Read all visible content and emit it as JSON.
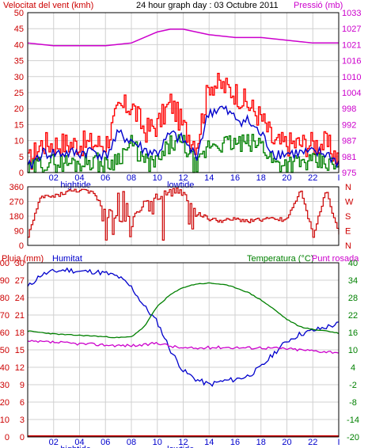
{
  "header": {
    "left_title": "Velocitat del vent (kmh)",
    "center_title": "24 hour graph day : 03 Octubre 2011",
    "right_title": "Pressió (mb)"
  },
  "colors": {
    "frame": "#000000",
    "grid": "#d0d0d0",
    "wind_speed": "#ff0000",
    "wind_avg": "#0000cc",
    "wind_gust_green": "#008000",
    "pressure": "#cc00cc",
    "humidity": "#0000cc",
    "temperature": "#008000",
    "dewpoint": "#cc00cc",
    "rain": "#cc0000",
    "direction": "#cc0000"
  },
  "x_ticks": [
    "02",
    "04",
    "06",
    "08",
    "10",
    "12",
    "14",
    "16",
    "18",
    "20",
    "22",
    "I"
  ],
  "tide_labels": {
    "high": "hightide",
    "low": "lowtide"
  },
  "chart_data": [
    {
      "type": "line",
      "name": "wind-and-pressure",
      "title": "24 hour graph day : 03 Octubre 2011",
      "ylabel_left": "Velocitat del vent (kmh)",
      "ylabel_right": "Pressió (mb)",
      "y_left_ticks": [
        "50",
        "45",
        "40",
        "35",
        "30",
        "25",
        "20",
        "15",
        "10",
        "5",
        "0"
      ],
      "y_right_ticks": [
        "1033",
        "1027",
        "1021",
        "1016",
        "1010",
        "1004",
        "998",
        "992",
        "987",
        "981",
        "975"
      ],
      "ylim_left": [
        0,
        50
      ],
      "ylim_right": [
        975,
        1033
      ],
      "x_range_hours": [
        0,
        24
      ],
      "pressure_hours": [
        0,
        2,
        4,
        6,
        8,
        9,
        10,
        11,
        12,
        13,
        14,
        16,
        18,
        20,
        22,
        24
      ],
      "pressure_values": [
        1022,
        1021,
        1021,
        1021,
        1022,
        1024,
        1026,
        1027,
        1027,
        1026,
        1025,
        1024,
        1024,
        1023,
        1022,
        1022
      ],
      "wind_hours": [
        0,
        1,
        2,
        3,
        4,
        5,
        6,
        7,
        8,
        9,
        10,
        11,
        12,
        13,
        14,
        15,
        16,
        17,
        18,
        19,
        20,
        21,
        22,
        23,
        24
      ],
      "wind_max_values": [
        3,
        9,
        9,
        9,
        9,
        9,
        9,
        20,
        21,
        13,
        15,
        22,
        14,
        9,
        28,
        27,
        25,
        21,
        17,
        9,
        9,
        9,
        9,
        9,
        4
      ],
      "wind_avg_values": [
        1,
        6,
        6,
        6,
        6,
        7,
        5,
        12,
        10,
        7,
        6,
        12,
        10,
        5,
        19,
        20,
        17,
        16,
        12,
        6,
        6,
        6,
        6,
        6,
        3
      ],
      "wind_min_values": [
        0,
        3,
        3,
        3,
        3,
        4,
        2,
        5,
        9,
        3,
        3,
        9,
        9,
        1,
        9,
        9,
        9,
        9,
        9,
        3,
        3,
        3,
        3,
        3,
        1
      ]
    },
    {
      "type": "scatter",
      "name": "wind-direction",
      "y_left_ticks": [
        "360",
        "270",
        "180",
        "90",
        "0"
      ],
      "y_right_ticks": [
        "N",
        "W",
        "S",
        "E",
        "N"
      ],
      "ylim": [
        0,
        360
      ],
      "hours": [
        0,
        1,
        2,
        3,
        4,
        5,
        6,
        7,
        8,
        9,
        10,
        11,
        12,
        13,
        14,
        15,
        16,
        17,
        18,
        19,
        20,
        21,
        22,
        23,
        24
      ],
      "values": [
        60,
        300,
        300,
        330,
        340,
        320,
        220,
        150,
        180,
        250,
        300,
        330,
        330,
        200,
        160,
        150,
        160,
        150,
        160,
        160,
        160,
        340,
        60,
        340,
        60
      ]
    },
    {
      "type": "line",
      "name": "rain-humidity-temperature",
      "labels_top": [
        "Pluja (mm)",
        "Humitat",
        "Temperatura (°C)",
        "Punt rosada"
      ],
      "y_rain_ticks": [
        "100",
        "90",
        "80",
        "70",
        "60",
        "50",
        "40",
        "30",
        "20",
        "10",
        "0"
      ],
      "y_hum_ticks": [
        "30",
        "27",
        "24",
        "21",
        "18",
        "15",
        "12",
        "9",
        "6",
        "3",
        "0"
      ],
      "y_temp_ticks": [
        "40",
        "34",
        "28",
        "22",
        "16",
        "10",
        "4",
        "-2",
        "-8",
        "-14",
        "-20"
      ],
      "ylim_humidity": [
        0,
        100
      ],
      "ylim_temperature": [
        -20,
        40
      ],
      "hours": [
        0,
        1,
        2,
        3,
        4,
        5,
        6,
        7,
        8,
        9,
        10,
        11,
        12,
        13,
        14,
        15,
        16,
        17,
        18,
        19,
        20,
        21,
        22,
        23,
        24
      ],
      "humidity": [
        86,
        93,
        95,
        96,
        95,
        95,
        94,
        92,
        86,
        75,
        66,
        50,
        38,
        33,
        30,
        32,
        33,
        35,
        40,
        48,
        55,
        59,
        61,
        63,
        65
      ],
      "temperature": [
        16.5,
        16,
        15.5,
        15.2,
        15,
        14.8,
        14.5,
        14.2,
        14.5,
        18,
        25,
        29,
        31.5,
        32.7,
        33,
        32.6,
        31.5,
        29.8,
        27.2,
        24,
        20.5,
        18,
        17,
        16.6,
        15.7
      ],
      "dewpoint": [
        12.8,
        12.7,
        12.6,
        12.3,
        12.1,
        11.9,
        11.7,
        11.5,
        11.5,
        11.6,
        12.5,
        11.3,
        10.6,
        10.5,
        10.8,
        10.9,
        10.8,
        10.7,
        10.8,
        10.6,
        10.4,
        10.0,
        9.7,
        9.4,
        9.2
      ],
      "rain": [
        0,
        0,
        0,
        0,
        0,
        0,
        0,
        0,
        0,
        0,
        0,
        0,
        0,
        0,
        0,
        0,
        0,
        0,
        0,
        0,
        0,
        0,
        0,
        0,
        0
      ]
    }
  ]
}
